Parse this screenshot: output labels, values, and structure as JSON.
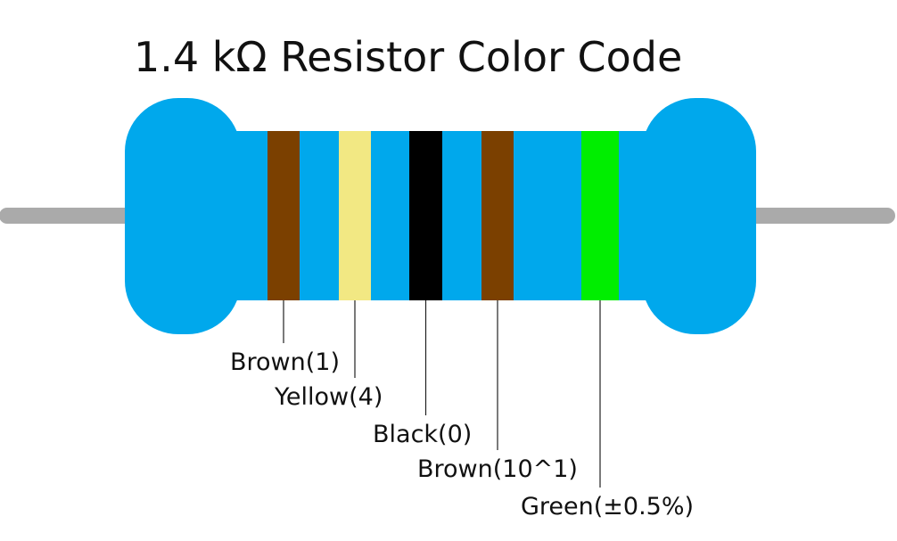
{
  "title": "1.4 kΩ Resistor Color Code",
  "bands": [
    {
      "label": "Brown(1)",
      "color": "#7b4000"
    },
    {
      "label": "Yellow(4)",
      "color": "#f2e883"
    },
    {
      "label": "Black(0)",
      "color": "#000000"
    },
    {
      "label": "Brown(10^1)",
      "color": "#7b4000"
    },
    {
      "label": "Green(±0.5%)",
      "color": "#00ee00"
    }
  ]
}
